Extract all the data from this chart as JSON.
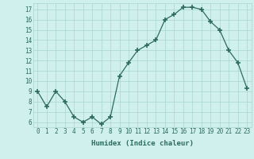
{
  "x": [
    0,
    1,
    2,
    3,
    4,
    5,
    6,
    7,
    8,
    9,
    10,
    11,
    12,
    13,
    14,
    15,
    16,
    17,
    18,
    19,
    20,
    21,
    22,
    23
  ],
  "y": [
    9,
    7.5,
    9,
    8,
    6.5,
    6,
    6.5,
    5.8,
    6.5,
    10.5,
    11.8,
    13,
    13.5,
    14,
    16,
    16.5,
    17.2,
    17.2,
    17,
    15.8,
    15,
    13,
    11.8,
    9.3
  ],
  "line_color": "#2e6b5e",
  "marker": "+",
  "marker_size": 4,
  "marker_lw": 1.2,
  "bg_color": "#cff0ec",
  "grid_color": "#aad6cf",
  "xlabel": "Humidex (Indice chaleur)",
  "xlim": [
    -0.5,
    23.5
  ],
  "ylim": [
    5.5,
    17.6
  ],
  "yticks": [
    6,
    7,
    8,
    9,
    10,
    11,
    12,
    13,
    14,
    15,
    16,
    17
  ],
  "xticks": [
    0,
    1,
    2,
    3,
    4,
    5,
    6,
    7,
    8,
    9,
    10,
    11,
    12,
    13,
    14,
    15,
    16,
    17,
    18,
    19,
    20,
    21,
    22,
    23
  ],
  "tick_color": "#2e6b5e",
  "xlabel_fontsize": 6.5,
  "tick_fontsize": 5.5,
  "line_width": 0.9
}
